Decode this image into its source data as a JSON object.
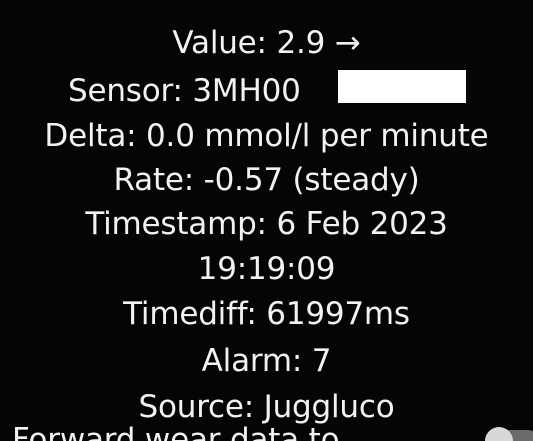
{
  "info": {
    "value": "Value: 2.9 →",
    "sensor": "Sensor: 3MH00",
    "delta": "Delta: 0.0 mmol/l per minute",
    "rate": "Rate: -0.57 (steady)",
    "timestamp_date": "Timestamp: 6 Feb 2023",
    "timestamp_time": "19:19:09",
    "timediff": "Timediff: 61997ms",
    "alarm": "Alarm: 7",
    "source": "Source: Juggluco"
  },
  "settings": {
    "forward_wear_label": "Forward wear data to"
  },
  "colors": {
    "background": "#050505",
    "text": "#f2f2f2",
    "redaction": "#ffffff"
  }
}
